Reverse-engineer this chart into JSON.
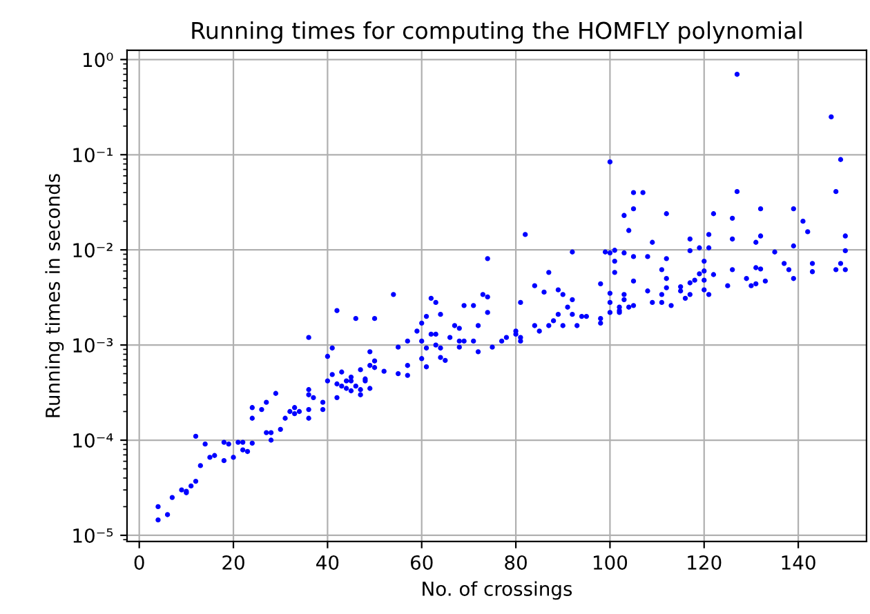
{
  "chart_data": {
    "type": "scatter",
    "title": "Running times for computing the HOMFLY polynomial",
    "xlabel": "No. of crossings",
    "ylabel": "Running times in seconds",
    "x": [
      4,
      4,
      6,
      7,
      9,
      10,
      10,
      11,
      12,
      13,
      12,
      14,
      15,
      16,
      18,
      18,
      19,
      20,
      21,
      22,
      22,
      23,
      24,
      24,
      24,
      26,
      27,
      27,
      28,
      28,
      29,
      30,
      31,
      32,
      33,
      33,
      34,
      36,
      36,
      36,
      36,
      37,
      36,
      39,
      39,
      40,
      41,
      42,
      46,
      50,
      40,
      41,
      42,
      42,
      43,
      44,
      45,
      45,
      46,
      47,
      47,
      48,
      49,
      49,
      49,
      44,
      45,
      43,
      47,
      48,
      54,
      50,
      50,
      52,
      55,
      57,
      57,
      55,
      57,
      59,
      60,
      60,
      60,
      61,
      61,
      61,
      62,
      62,
      63,
      63,
      63,
      64,
      64,
      64,
      65,
      66,
      67,
      68,
      68,
      68,
      69,
      69,
      71,
      71,
      72,
      72,
      73,
      74,
      74,
      74,
      75,
      77,
      78,
      80,
      80,
      81,
      81,
      81,
      82,
      84,
      84,
      85,
      86,
      87,
      87,
      88,
      89,
      90,
      89,
      91,
      90,
      92,
      92,
      92,
      93,
      94,
      95,
      98,
      99,
      98,
      98,
      100,
      100,
      100,
      100,
      101,
      101,
      101,
      102,
      127,
      147,
      149,
      148,
      150,
      150,
      148,
      150,
      149,
      143,
      143,
      142,
      141,
      139,
      139,
      139,
      138,
      137,
      135,
      133,
      132,
      132,
      131,
      131,
      132,
      131,
      129,
      130,
      127,
      126,
      126,
      126,
      125,
      122,
      121,
      121,
      122,
      121,
      120,
      120,
      120,
      120,
      119,
      119,
      118,
      117,
      117,
      117,
      117,
      116,
      115,
      115,
      113,
      112,
      112,
      112,
      112,
      111,
      111,
      111,
      109,
      109,
      108,
      108,
      105,
      107,
      105,
      103,
      104,
      105,
      105,
      103,
      103,
      103,
      104,
      105,
      102,
      102,
      100
    ],
    "values": [
      2e-05,
      1.45e-05,
      1.65e-05,
      2.5e-05,
      3e-05,
      2.9e-05,
      2.8e-05,
      3.3e-05,
      3.7e-05,
      5.4e-05,
      0.00011,
      9.1e-05,
      6.6e-05,
      6.9e-05,
      6.1e-05,
      9.5e-05,
      9.1e-05,
      6.6e-05,
      9.5e-05,
      9.5e-05,
      7.9e-05,
      7.6e-05,
      9.3e-05,
      0.00022,
      0.00017,
      0.00021,
      0.00025,
      0.00012,
      0.00012,
      0.0001,
      0.00031,
      0.00013,
      0.00017,
      0.0002,
      0.00022,
      0.00019,
      0.0002,
      0.00017,
      0.00021,
      0.0003,
      0.00034,
      0.00028,
      0.0012,
      0.00025,
      0.00021,
      0.00076,
      0.00093,
      0.0023,
      0.0019,
      0.0019,
      0.00042,
      0.00049,
      0.00039,
      0.00028,
      0.00052,
      0.00042,
      0.00033,
      0.00046,
      0.00037,
      0.00055,
      0.0003,
      0.00042,
      0.00035,
      0.00061,
      0.00085,
      0.00035,
      0.00042,
      0.00037,
      0.00034,
      0.00044,
      0.0034,
      0.00068,
      0.00058,
      0.00053,
      0.0005,
      0.00061,
      0.00048,
      0.00095,
      0.0011,
      0.0014,
      0.0017,
      0.0011,
      0.00072,
      0.00059,
      0.002,
      0.00093,
      0.0013,
      0.0031,
      0.0028,
      0.0013,
      0.001,
      0.00093,
      0.0021,
      0.00074,
      0.00069,
      0.0012,
      0.0016,
      0.0015,
      0.0011,
      0.00095,
      0.0026,
      0.0011,
      0.0026,
      0.0011,
      0.0016,
      0.00085,
      0.0034,
      0.0032,
      0.0022,
      0.0081,
      0.00095,
      0.0011,
      0.0012,
      0.0014,
      0.0013,
      0.0012,
      0.0011,
      0.0028,
      0.0145,
      0.0042,
      0.0016,
      0.0014,
      0.0036,
      0.0058,
      0.0016,
      0.0018,
      0.0038,
      0.0034,
      0.0021,
      0.0025,
      0.0016,
      0.0021,
      0.0095,
      0.003,
      0.0016,
      0.002,
      0.002,
      0.0044,
      0.0095,
      0.0019,
      0.0017,
      0.084,
      0.0035,
      0.0028,
      0.0022,
      0.0099,
      0.0076,
      0.0058,
      0.0023,
      0.7,
      0.25,
      0.089,
      0.041,
      0.014,
      0.0098,
      0.0062,
      0.0062,
      0.0072,
      0.0072,
      0.0059,
      0.0155,
      0.02,
      0.027,
      0.011,
      0.005,
      0.0062,
      0.0072,
      0.0095,
      0.0047,
      0.027,
      0.014,
      0.012,
      0.0065,
      0.0063,
      0.0044,
      0.005,
      0.0042,
      0.041,
      0.0215,
      0.013,
      0.0062,
      0.0042,
      0.024,
      0.0145,
      0.0105,
      0.0055,
      0.0034,
      0.0076,
      0.006,
      0.0048,
      0.0038,
      0.0056,
      0.0105,
      0.0048,
      0.013,
      0.0098,
      0.0045,
      0.0034,
      0.0031,
      0.0041,
      0.0037,
      0.0026,
      0.024,
      0.0081,
      0.005,
      0.004,
      0.0028,
      0.0062,
      0.0034,
      0.012,
      0.0028,
      0.0085,
      0.0037,
      0.04,
      0.04,
      0.027,
      0.023,
      0.016,
      0.0085,
      0.0047,
      0.0093,
      0.0034,
      0.003,
      0.0025,
      0.0026,
      0.0025,
      0.0022,
      0.0093
    ],
    "color": "#0000ff",
    "marker": "circle",
    "log": true,
    "grid": true,
    "xlim": [
      -2.6,
      154.5
    ],
    "xticks": [
      0,
      20,
      40,
      60,
      80,
      100,
      120,
      140
    ],
    "ylim": [
      8.6e-06,
      1.25
    ],
    "yticks": [
      {
        "value": 1e-05,
        "label": "10⁻⁵"
      },
      {
        "value": 0.0001,
        "label": "10⁻⁴"
      },
      {
        "value": 0.001,
        "label": "10⁻³"
      },
      {
        "value": 0.01,
        "label": "10⁻²"
      },
      {
        "value": 0.1,
        "label": "10⁻¹"
      },
      {
        "value": 1,
        "label": "10⁰"
      }
    ]
  }
}
